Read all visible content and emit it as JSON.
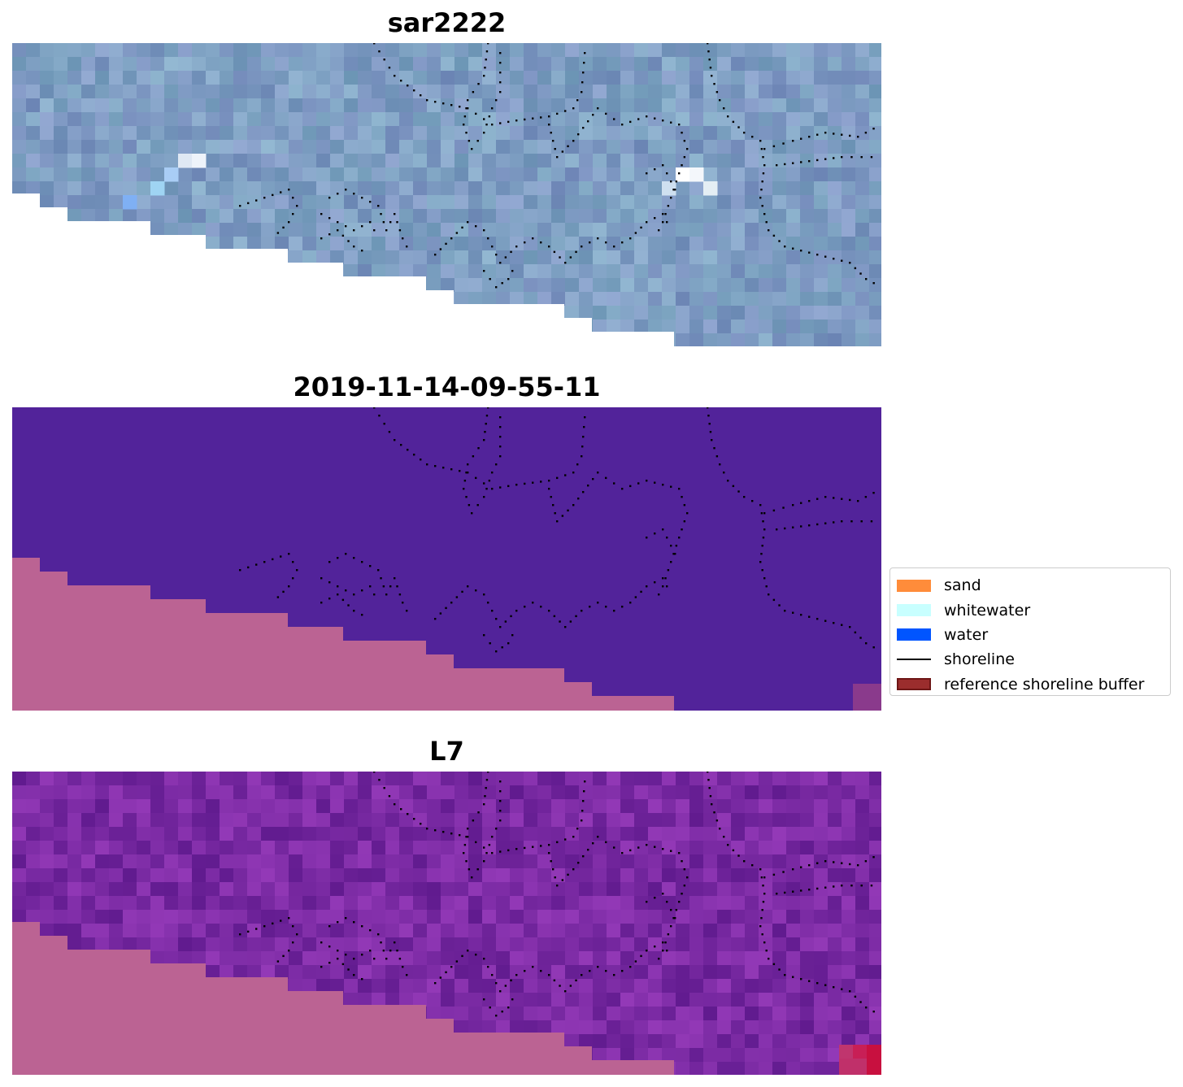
{
  "panels": [
    {
      "title": "sar2222",
      "style": "sar"
    },
    {
      "title": "2019-11-14-09-55-11",
      "style": "class"
    },
    {
      "title": "L7",
      "style": "l7"
    }
  ],
  "legend": {
    "items": [
      {
        "label": "sand",
        "color": "#ff8c3a",
        "kind": "patch"
      },
      {
        "label": "whitewater",
        "color": "#c8ffff",
        "kind": "patch"
      },
      {
        "label": "water",
        "color": "#0055ff",
        "kind": "patch"
      },
      {
        "label": "shoreline",
        "color": "#000000",
        "kind": "line"
      },
      {
        "label": "reference shoreline buffer",
        "color": "#9b2d2d",
        "kind": "patch"
      }
    ]
  },
  "colors": {
    "sar_base": "#7f9ec3",
    "class_water": "#52239a",
    "nodata": "#bb6393",
    "l7_base": "#7a2aa3",
    "shoreline": "#000000"
  }
}
